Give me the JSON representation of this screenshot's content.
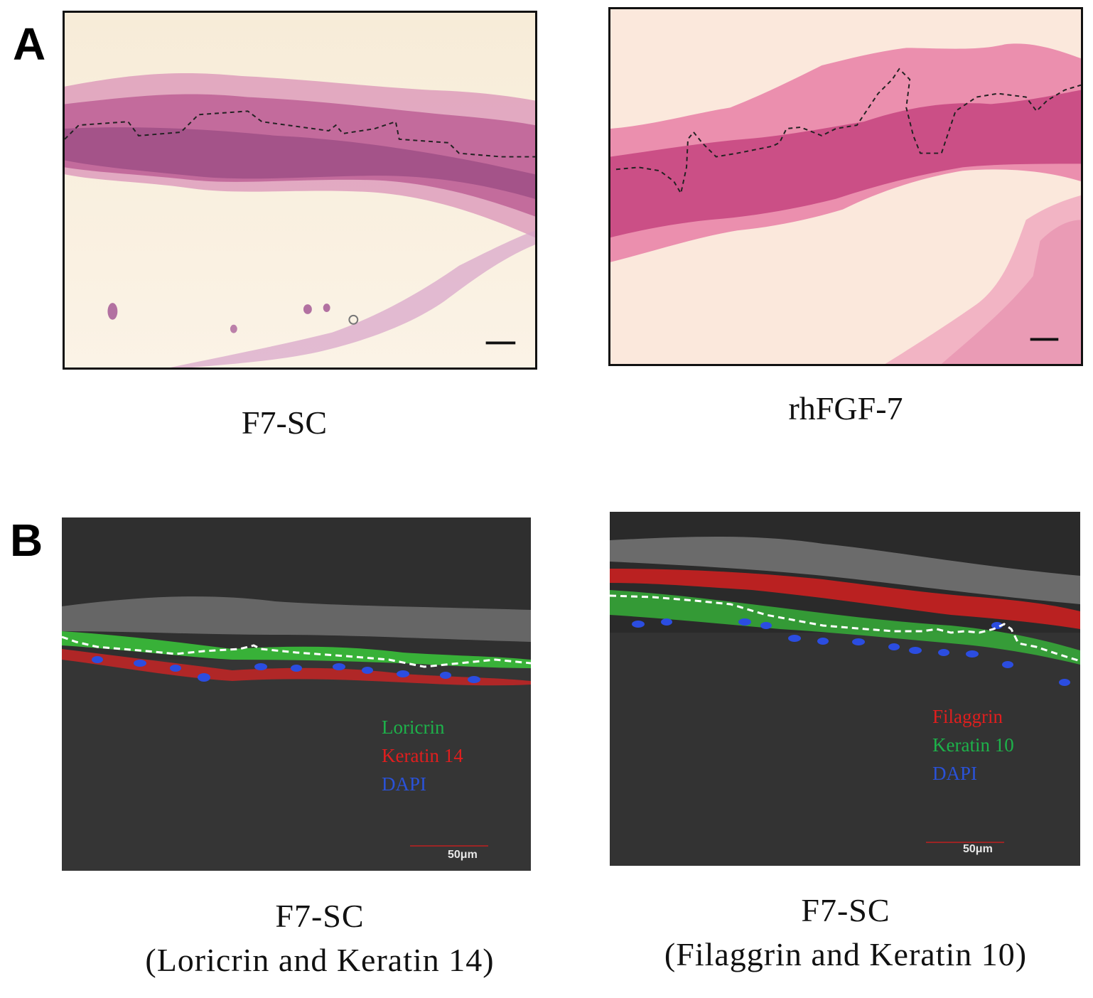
{
  "panels": {
    "a": {
      "letter": "A",
      "left_caption": "F7-SC",
      "right_caption": "rhFGF-7"
    },
    "b": {
      "letter": "B",
      "left": {
        "caption_line1": "F7-SC",
        "caption_line2": "(Loricrin and Keratin 14)",
        "legend": [
          {
            "text": "Loricrin",
            "color": "#1db24a"
          },
          {
            "text": "Keratin 14",
            "color": "#e01e1e"
          },
          {
            "text": "DAPI",
            "color": "#2a52d8"
          }
        ],
        "scale_label": "50μm"
      },
      "right": {
        "caption_line1": "F7-SC",
        "caption_line2": "(Filaggrin and Keratin 10)",
        "legend": [
          {
            "text": "Filaggrin",
            "color": "#e01e1e"
          },
          {
            "text": "Keratin 10",
            "color": "#1db24a"
          },
          {
            "text": "DAPI",
            "color": "#2a52d8"
          }
        ],
        "scale_label": "50μm"
      }
    }
  }
}
